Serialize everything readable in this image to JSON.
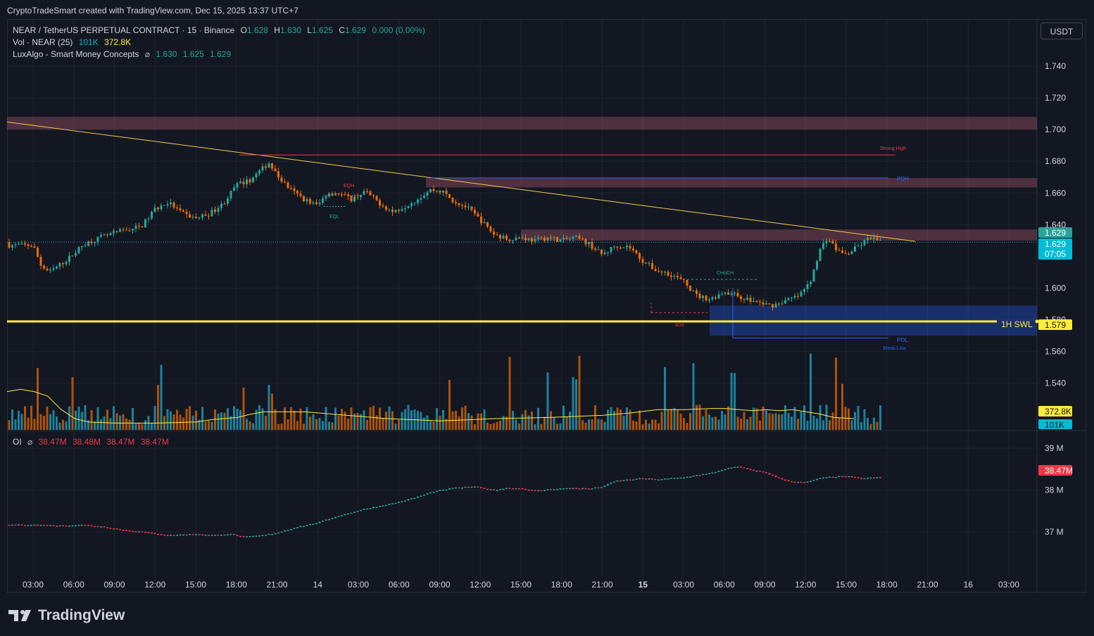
{
  "caption": "CryptoTradeSmart created with TradingView.com, Dec 15, 2025 13:37 UTC+7",
  "symbol_line": {
    "title": "NEAR / TetherUS PERPETUAL CONTRACT · 15 · Binance",
    "o_label": "O",
    "o_val": "1.628",
    "h_label": "H",
    "h_val": "1.630",
    "l_label": "L",
    "l_val": "1.625",
    "c_label": "C",
    "c_val": "1.629",
    "change": "0.000 (0.00%)"
  },
  "vol_line": {
    "label": "Vol · NEAR (25)",
    "v1": "101K",
    "v2": "372.8K"
  },
  "smc_line": {
    "label": "LuxAlgo - Smart Money Concepts",
    "v1": "1.630",
    "v2": "1.625",
    "v3": "1.629"
  },
  "oi_line": {
    "label": "OI",
    "v1": "38.47M",
    "v2": "38.48M",
    "v3": "38.47M",
    "v4": "38.47M"
  },
  "currency": "USDT",
  "brand": "TradingView",
  "colors": {
    "up": "#26a69a",
    "down": "#ef6c00",
    "oi_up": "#26a69a",
    "oi_down": "#f23645",
    "trendline": "#f7c948",
    "swl": "#ffeb3b"
  },
  "chart_data": {
    "type": "candlestick",
    "price_ticks": [
      "1.740",
      "1.720",
      "1.700",
      "1.680",
      "1.660",
      "1.640",
      "1.600",
      "1.580",
      "1.560",
      "1.540"
    ],
    "price_range": [
      1.534,
      1.755
    ],
    "oi_ticks": [
      "39 M",
      "38 M",
      "37 M"
    ],
    "oi_range": [
      36.2,
      39.3
    ],
    "time_ticks": [
      "03:00",
      "06:00",
      "09:00",
      "12:00",
      "15:00",
      "18:00",
      "21:00",
      "14",
      "03:00",
      "06:00",
      "09:00",
      "12:00",
      "15:00",
      "18:00",
      "21:00",
      "15",
      "03:00",
      "06:00",
      "09:00",
      "12:00",
      "15:00",
      "18:00",
      "21:00",
      "16",
      "03:00"
    ],
    "price_path": [
      [
        0,
        1.627
      ],
      [
        0.6,
        1.614
      ],
      [
        1.2,
        1.61
      ],
      [
        2.5,
        1.618
      ],
      [
        3.8,
        1.628
      ],
      [
        5,
        1.632
      ],
      [
        6.5,
        1.636
      ],
      [
        8,
        1.639
      ],
      [
        9,
        1.65
      ],
      [
        10,
        1.654
      ],
      [
        11,
        1.647
      ],
      [
        12,
        1.644
      ],
      [
        13,
        1.647
      ],
      [
        14,
        1.653
      ],
      [
        15,
        1.665
      ],
      [
        16,
        1.668
      ],
      [
        17,
        1.676
      ],
      [
        17.4,
        1.679
      ],
      [
        18,
        1.671
      ],
      [
        19,
        1.662
      ],
      [
        20,
        1.656
      ],
      [
        21,
        1.652
      ],
      [
        21.7,
        1.66
      ],
      [
        22.5,
        1.66
      ],
      [
        23.5,
        1.656
      ],
      [
        24.5,
        1.661
      ],
      [
        25.5,
        1.654
      ],
      [
        26.5,
        1.648
      ],
      [
        27.5,
        1.652
      ],
      [
        28.5,
        1.657
      ],
      [
        29.3,
        1.662
      ],
      [
        30.2,
        1.661
      ],
      [
        31,
        1.655
      ],
      [
        32,
        1.651
      ],
      [
        33,
        1.643
      ],
      [
        34,
        1.634
      ],
      [
        35,
        1.631
      ],
      [
        36,
        1.632
      ],
      [
        37,
        1.63
      ],
      [
        38,
        1.632
      ],
      [
        39,
        1.63
      ],
      [
        40,
        1.632
      ],
      [
        41,
        1.628
      ],
      [
        42,
        1.621
      ],
      [
        43,
        1.627
      ],
      [
        44,
        1.626
      ],
      [
        45,
        1.617
      ],
      [
        46,
        1.611
      ],
      [
        47,
        1.609
      ],
      [
        48,
        1.604
      ],
      [
        49,
        1.595
      ],
      [
        50,
        1.593
      ],
      [
        51,
        1.598
      ],
      [
        52,
        1.595
      ],
      [
        53,
        1.592
      ],
      [
        53.9,
        1.59
      ],
      [
        54.5,
        1.589
      ],
      [
        55.5,
        1.592
      ],
      [
        56.5,
        1.595
      ],
      [
        57.3,
        1.603
      ],
      [
        58,
        1.623
      ],
      [
        58.6,
        1.632
      ],
      [
        59.3,
        1.624
      ],
      [
        60,
        1.621
      ],
      [
        61,
        1.627
      ],
      [
        61.8,
        1.632
      ],
      [
        62.5,
        1.629
      ]
    ],
    "oi_path": [
      [
        0,
        37.17
      ],
      [
        2,
        37.15
      ],
      [
        3.5,
        37.17
      ],
      [
        5,
        37.13
      ],
      [
        6.5,
        37.05
      ],
      [
        8,
        37.0
      ],
      [
        10,
        36.92
      ],
      [
        12,
        36.95
      ],
      [
        13,
        36.92
      ],
      [
        14.5,
        36.95
      ],
      [
        15.5,
        36.88
      ],
      [
        17,
        36.92
      ],
      [
        18,
        36.98
      ],
      [
        19.5,
        37.12
      ],
      [
        21,
        37.22
      ],
      [
        22.5,
        37.38
      ],
      [
        24.5,
        37.55
      ],
      [
        26.5,
        37.68
      ],
      [
        28,
        37.8
      ],
      [
        29.5,
        37.96
      ],
      [
        31,
        38.05
      ],
      [
        32.5,
        38.08
      ],
      [
        34,
        38.0
      ],
      [
        35,
        38.05
      ],
      [
        36,
        38.04
      ],
      [
        37,
        37.98
      ],
      [
        38.5,
        38.03
      ],
      [
        40,
        38.05
      ],
      [
        41,
        38.03
      ],
      [
        42,
        38.08
      ],
      [
        43,
        38.22
      ],
      [
        45,
        38.28
      ],
      [
        46,
        38.25
      ],
      [
        47,
        38.28
      ],
      [
        48,
        38.3
      ],
      [
        49,
        38.36
      ],
      [
        50,
        38.4
      ],
      [
        51,
        38.5
      ],
      [
        52,
        38.56
      ],
      [
        53,
        38.48
      ],
      [
        54,
        38.42
      ],
      [
        55,
        38.28
      ],
      [
        56,
        38.2
      ],
      [
        57,
        38.18
      ],
      [
        58,
        38.28
      ],
      [
        59,
        38.32
      ],
      [
        60,
        38.33
      ],
      [
        61,
        38.28
      ],
      [
        62.5,
        38.3
      ]
    ],
    "volume_ma_path": [
      [
        0,
        34
      ],
      [
        1,
        36
      ],
      [
        2,
        34
      ],
      [
        3,
        30
      ],
      [
        4,
        18
      ],
      [
        5,
        10
      ],
      [
        6,
        7
      ],
      [
        8,
        6
      ],
      [
        11,
        6
      ],
      [
        14,
        7
      ],
      [
        15,
        9
      ],
      [
        17,
        11
      ],
      [
        18,
        14
      ],
      [
        19,
        16
      ],
      [
        20,
        16
      ],
      [
        22,
        16
      ],
      [
        24,
        14
      ],
      [
        26,
        12
      ],
      [
        28,
        10
      ],
      [
        32,
        8
      ],
      [
        36,
        10
      ],
      [
        40,
        11
      ],
      [
        44,
        13
      ],
      [
        46,
        15
      ],
      [
        48,
        18
      ],
      [
        50,
        18
      ],
      [
        52,
        19
      ],
      [
        53,
        19
      ],
      [
        54,
        18
      ],
      [
        55,
        17
      ],
      [
        56,
        18
      ],
      [
        57,
        17
      ],
      [
        58,
        18
      ],
      [
        59,
        16
      ],
      [
        60,
        14
      ],
      [
        61,
        11
      ],
      [
        62.5,
        10
      ]
    ],
    "annotations": {
      "eqh": "EQH",
      "eql": "EQL",
      "strong_high": "Strong High",
      "pdh": "PDH",
      "choch": "CHoCH",
      "pdl": "PDL",
      "weak_low": "Weak Low",
      "bos": "BOS",
      "swl": "1H SWL"
    },
    "levels": {
      "swl": 1.579,
      "pdh": 1.6695,
      "pdl": 1.5685,
      "strong_high": 1.684
    },
    "current_price": "1.629",
    "countdown": "07:05",
    "swl_price": "1.579",
    "vol_ma_value": "372.8K",
    "vol_value": "101K",
    "oi_value": "38.47M"
  }
}
